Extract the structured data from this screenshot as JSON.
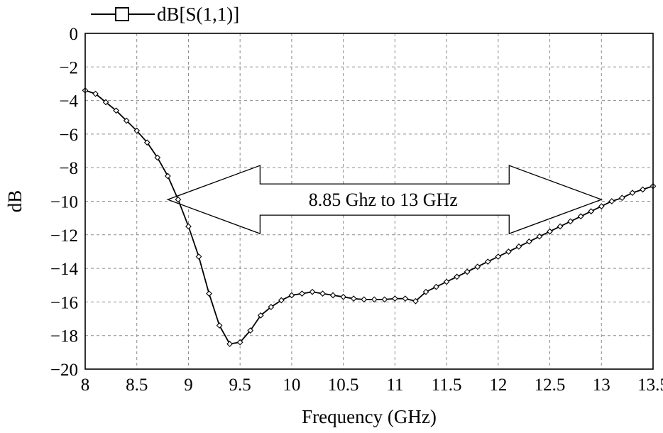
{
  "chart_data": {
    "type": "line",
    "xlabel": "Frequency (GHz)",
    "ylabel": "dB",
    "xlim": [
      8,
      13.5
    ],
    "ylim": [
      -20,
      0
    ],
    "xticks": [
      8,
      8.5,
      9,
      9.5,
      10,
      10.5,
      11,
      11.5,
      12,
      12.5,
      13,
      13.5
    ],
    "xtick_labels": [
      "8",
      "8.5",
      "9",
      "9.5",
      "10",
      "10.5",
      "11",
      "11.5",
      "12",
      "12.5",
      "13",
      "13.5"
    ],
    "yticks": [
      0,
      -2,
      -4,
      -6,
      -8,
      -10,
      -12,
      -14,
      -16,
      -18,
      -20
    ],
    "ytick_labels": [
      "0",
      "−2",
      "−4",
      "−6",
      "−8",
      "−10",
      "−12",
      "−14",
      "−16",
      "−18",
      "−20"
    ],
    "grid": true,
    "legend": {
      "placement": "top-left-outside",
      "marker": "square"
    },
    "series": [
      {
        "name": "dB[S(1,1)]",
        "color": "#000000",
        "marker": "diamond",
        "x": [
          8.0,
          8.1,
          8.2,
          8.3,
          8.4,
          8.5,
          8.6,
          8.7,
          8.8,
          8.9,
          9.0,
          9.1,
          9.2,
          9.3,
          9.4,
          9.5,
          9.6,
          9.7,
          9.8,
          9.9,
          10.0,
          10.1,
          10.2,
          10.3,
          10.4,
          10.5,
          10.6,
          10.7,
          10.8,
          10.9,
          11.0,
          11.1,
          11.2,
          11.3,
          11.4,
          11.5,
          11.6,
          11.7,
          11.8,
          11.9,
          12.0,
          12.1,
          12.2,
          12.3,
          12.4,
          12.5,
          12.6,
          12.7,
          12.8,
          12.9,
          13.0,
          13.1,
          13.2,
          13.3,
          13.4,
          13.5
        ],
        "y": [
          -3.4,
          -3.6,
          -4.1,
          -4.6,
          -5.2,
          -5.8,
          -6.5,
          -7.4,
          -8.5,
          -9.9,
          -11.5,
          -13.3,
          -15.5,
          -17.4,
          -18.5,
          -18.4,
          -17.7,
          -16.8,
          -16.3,
          -15.9,
          -15.6,
          -15.5,
          -15.4,
          -15.5,
          -15.6,
          -15.7,
          -15.8,
          -15.85,
          -15.85,
          -15.85,
          -15.8,
          -15.8,
          -15.95,
          -15.4,
          -15.1,
          -14.8,
          -14.5,
          -14.2,
          -13.9,
          -13.6,
          -13.3,
          -13.0,
          -12.7,
          -12.4,
          -12.1,
          -11.8,
          -11.5,
          -11.2,
          -10.9,
          -10.6,
          -10.3,
          -10.0,
          -9.8,
          -9.5,
          -9.3,
          -9.1
        ]
      }
    ],
    "annotations": [
      {
        "type": "double-arrow",
        "x_start": 8.8,
        "x_end": 13.0,
        "y": -9.9,
        "text": "8.85 Ghz to 13 GHz"
      }
    ]
  }
}
